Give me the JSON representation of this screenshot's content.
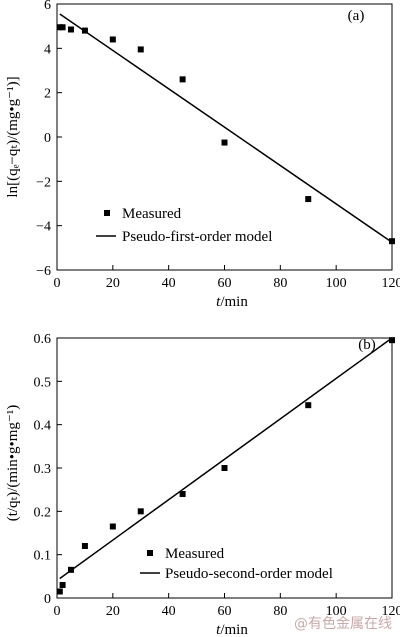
{
  "chart_data": [
    {
      "panel": "(a)",
      "type": "scatter",
      "xlim": [
        0,
        120
      ],
      "ylim": [
        -6,
        6
      ],
      "x_ticks": [
        0,
        20,
        40,
        60,
        80,
        100,
        120
      ],
      "y_ticks": [
        -6,
        -4,
        -2,
        0,
        2,
        4,
        6
      ],
      "ylabel_text": "ln[(qₑ−qₜ)/(mg•g⁻¹)]",
      "xlabel_var": "t",
      "xlabel_unit": "/min",
      "legend_position": "bottom-left",
      "series": [
        {
          "name": "Measured",
          "kind": "points",
          "x": [
            1,
            2,
            5,
            10,
            20,
            30,
            45,
            60,
            90,
            120
          ],
          "y": [
            4.95,
            4.95,
            4.85,
            4.8,
            4.4,
            3.95,
            2.6,
            -0.25,
            -2.8,
            -4.7
          ]
        },
        {
          "name": "Pseudo-first-order model",
          "kind": "line",
          "x": [
            1,
            120
          ],
          "y": [
            5.55,
            -4.75
          ]
        }
      ]
    },
    {
      "panel": "(b)",
      "type": "scatter",
      "xlim": [
        0,
        120
      ],
      "ylim": [
        0,
        0.6
      ],
      "x_ticks": [
        0,
        20,
        40,
        60,
        80,
        100,
        120
      ],
      "y_ticks": [
        0,
        0.1,
        0.2,
        0.3,
        0.4,
        0.5,
        0.6
      ],
      "ylabel_text": "(t/qₜ)/(min•g•mg⁻¹)",
      "xlabel_var": "t",
      "xlabel_unit": "/min",
      "legend_position": "bottom-center",
      "series": [
        {
          "name": "Measured",
          "kind": "points",
          "x": [
            1,
            2,
            5,
            10,
            20,
            30,
            45,
            60,
            90,
            120
          ],
          "y": [
            0.015,
            0.03,
            0.065,
            0.12,
            0.165,
            0.2,
            0.24,
            0.3,
            0.445,
            0.595
          ]
        },
        {
          "name": "Pseudo-second-order model",
          "kind": "line",
          "x": [
            1,
            120
          ],
          "y": [
            0.045,
            0.6
          ]
        }
      ]
    }
  ],
  "watermark": "@有色金属在线"
}
